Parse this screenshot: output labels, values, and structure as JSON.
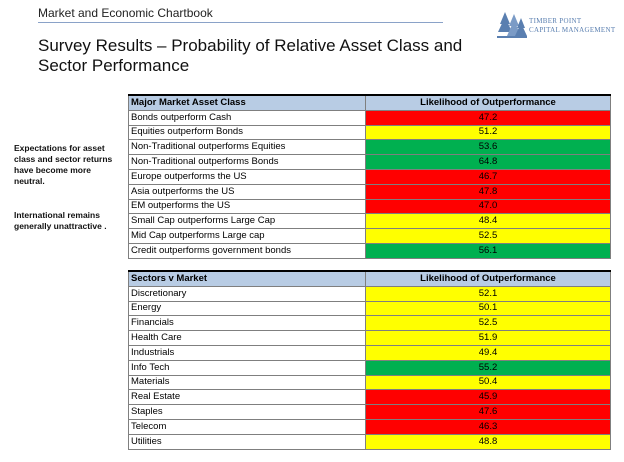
{
  "header": {
    "section_title": "Market and Economic Chartbook",
    "logo_line1": "TIMBER POINT",
    "logo_line2": "CAPITAL MANAGEMENT",
    "logo_icon": "tree-icon"
  },
  "title": "Survey Results – Probability of Relative Asset Class and Sector Performance",
  "notes": {
    "note1": "Expectations for asset class and sector returns have become more neutral.",
    "note2": "International remains generally unattractive ."
  },
  "colors": {
    "red": "#ff0000",
    "yellow": "#ffff00",
    "green": "#00b050",
    "header_blue": "#b8cce4"
  },
  "asset_table": {
    "header_label": "Major Market Asset Class",
    "header_value": "Likelihood of Outperformance",
    "rows": [
      {
        "label": "Bonds outperform Cash",
        "value": "47.2",
        "color": "red"
      },
      {
        "label": "Equities outperform Bonds",
        "value": "51.2",
        "color": "yellow"
      },
      {
        "label": "Non-Traditional outperforms Equities",
        "value": "53.6",
        "color": "green"
      },
      {
        "label": "Non-Traditional outperforms Bonds",
        "value": "64.8",
        "color": "green"
      },
      {
        "label": "Europe outperforms the US",
        "value": "46.7",
        "color": "red"
      },
      {
        "label": "Asia outperforms the US",
        "value": "47.8",
        "color": "red"
      },
      {
        "label": "EM outperforms the US",
        "value": "47.0",
        "color": "red"
      },
      {
        "label": "Small Cap outperforms Large Cap",
        "value": "48.4",
        "color": "yellow"
      },
      {
        "label": "Mid Cap outperforms Large cap",
        "value": "52.5",
        "color": "yellow"
      },
      {
        "label": "Credit outperforms government bonds",
        "value": "56.1",
        "color": "green"
      }
    ]
  },
  "sector_table": {
    "header_label": "Sectors v Market",
    "header_value": "Likelihood of Outperformance",
    "rows": [
      {
        "label": "Discretionary",
        "value": "52.1",
        "color": "yellow"
      },
      {
        "label": "Energy",
        "value": "50.1",
        "color": "yellow"
      },
      {
        "label": "Financials",
        "value": "52.5",
        "color": "yellow"
      },
      {
        "label": "Health Care",
        "value": "51.9",
        "color": "yellow"
      },
      {
        "label": "Industrials",
        "value": "49.4",
        "color": "yellow"
      },
      {
        "label": "Info Tech",
        "value": "55.2",
        "color": "green"
      },
      {
        "label": "Materials",
        "value": "50.4",
        "color": "yellow"
      },
      {
        "label": "Real Estate",
        "value": "45.9",
        "color": "red"
      },
      {
        "label": "Staples",
        "value": "47.6",
        "color": "red"
      },
      {
        "label": "Telecom",
        "value": "46.3",
        "color": "red"
      },
      {
        "label": "Utilities",
        "value": "48.8",
        "color": "yellow"
      }
    ]
  }
}
